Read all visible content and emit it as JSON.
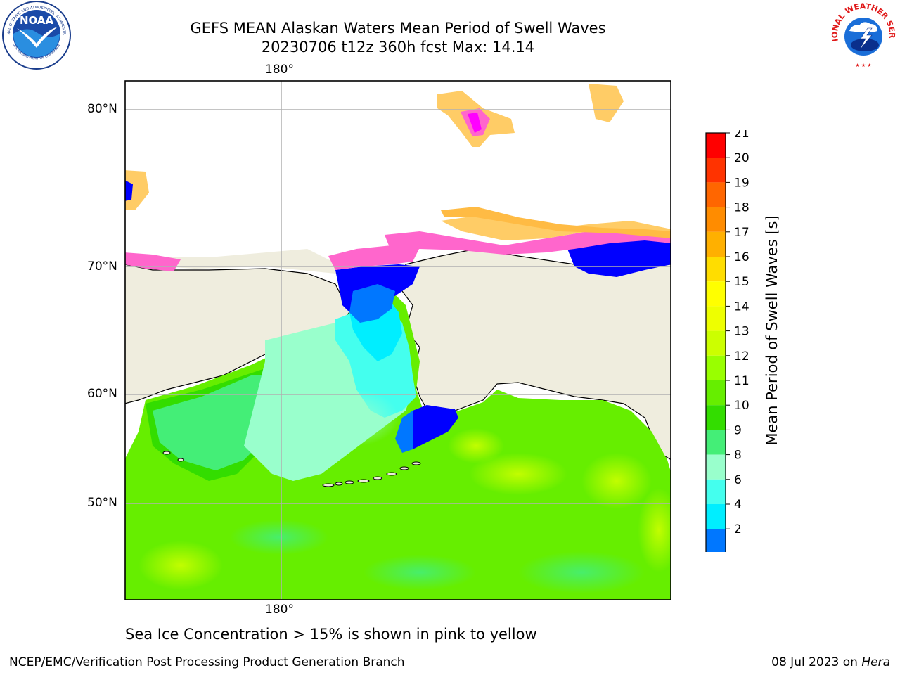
{
  "title": {
    "line1": "GEFS MEAN Alaskan Waters Mean Period of Swell Waves",
    "line2": "20230706 t12z 360h fcst   Max: 14.14"
  },
  "map": {
    "lon_labels": {
      "top": "180°",
      "bottom": "180°"
    },
    "lat_labels": [
      "80°N",
      "70°N",
      "60°N",
      "50°N"
    ],
    "colors": {
      "land": "#efedde",
      "coast": "#000000",
      "grid": "#b0b0b0"
    }
  },
  "colorbar": {
    "label": "Mean Period of Swell Waves [s]",
    "ticks": [
      "21",
      "20",
      "19",
      "18",
      "17",
      "16",
      "15",
      "14",
      "13",
      "12",
      "11",
      "10",
      "9",
      "8",
      "6",
      "4",
      "2"
    ],
    "colors": [
      "#ff0000",
      "#ff3300",
      "#ff6600",
      "#ff8c00",
      "#ffb000",
      "#ffdd00",
      "#ffff00",
      "#eeff00",
      "#ccff00",
      "#99ff00",
      "#66ee00",
      "#33dd00",
      "#44ee77",
      "#99ffcc",
      "#44ffee",
      "#00eeff",
      "#0077ff",
      "#0000ff"
    ]
  },
  "note": "Sea Ice Concentration > 15% is shown in pink to yellow",
  "footer": {
    "left": "NCEP/EMC/Verification Post Processing Product Generation Branch",
    "date": "08 Jul 2023 on ",
    "host": "Hera"
  },
  "logos": {
    "noaa_text": "NOAA",
    "noaa_ring": "NATIONAL OCEANIC AND ATMOSPHERIC ADMINISTRATION",
    "noaa_ring_bottom": "U.S. DEPARTMENT OF COMMERCE",
    "nws_ring": "NATIONAL WEATHER SERVICE"
  }
}
